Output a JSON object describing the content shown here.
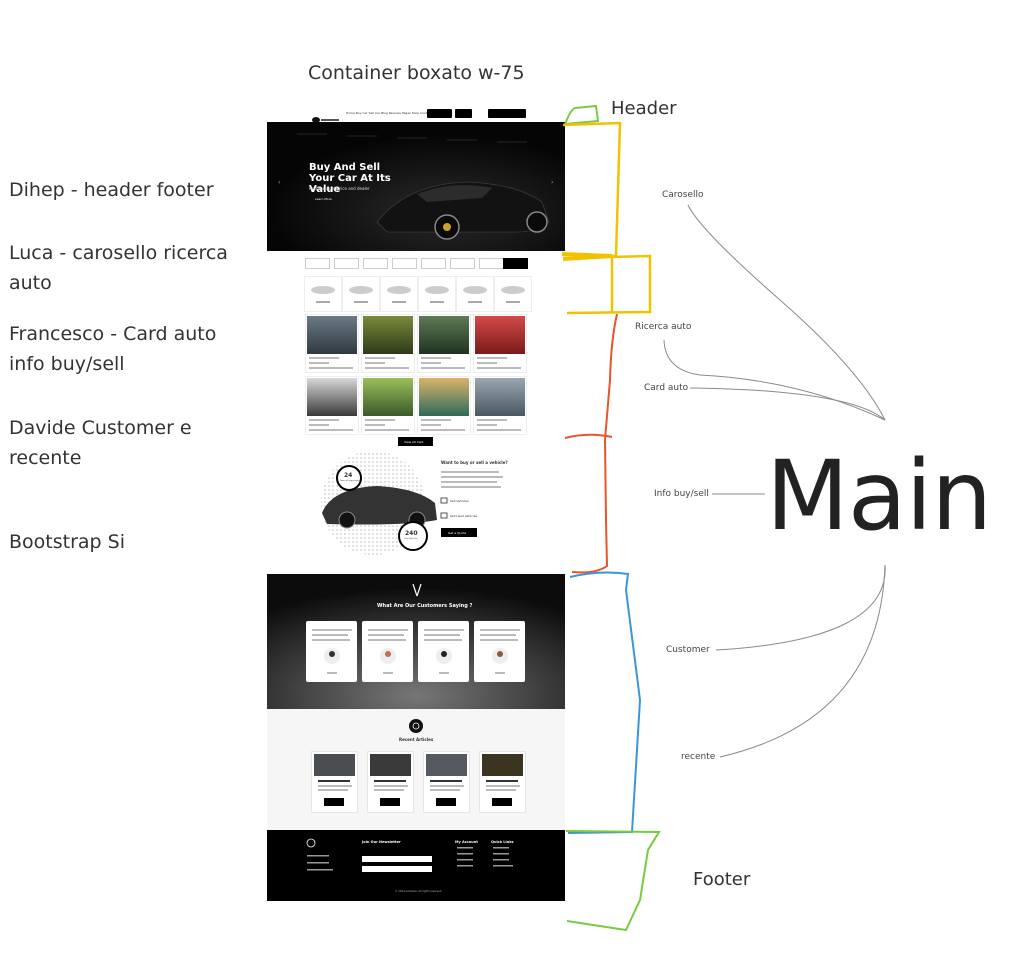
{
  "title": "Container boxato w-75",
  "assignments": [
    {
      "text": "Dihep - header footer"
    },
    {
      "text": "Luca - carosello ricerca auto"
    },
    {
      "text": "Francesco - Card auto info buy/sell"
    },
    {
      "text": "Davide Customer e recente"
    },
    {
      "text": "Bootstrap Si"
    }
  ],
  "section_labels": {
    "header": "Header",
    "footer": "Footer",
    "main": "Main"
  },
  "annotations": {
    "carosello": "Carosello",
    "ricerca_auto": "Ricerca auto",
    "card_auto": "Card auto",
    "info_buy_sell": "Info buy/sell",
    "customer": "Customer",
    "recente": "recente"
  },
  "mockup": {
    "hero_title": "Buy And Sell Your Car At Its Value",
    "hero_subtitle": "Find the right price and dealer",
    "hero_button": "Learn More",
    "nav_links": "Home  Buy Car  Sell Car  Blog  Reviews  Pages  Shop  Contact",
    "view_more": "View All Cars",
    "info_title": "Want to buy or sell a vehicle?",
    "stat_1": "24",
    "stat_1_label": "Years of Experience",
    "stat_2": "240",
    "stat_2_label": "Cars Sold Out",
    "info_new": "Sell Vehicles",
    "info_used": "Sell Used Vehicles",
    "info_button": "Get a Quote",
    "customers_title": "What Are Our Customers Saying ?",
    "recent_title": "Recent Articles",
    "newsletter_title": "Join Our Newsletter",
    "my_account": "My Account",
    "quick_links": "Quick Links",
    "copyright": "© 2024 Autowise. All rights reserved."
  },
  "colors": {
    "header_bracket": "#7ac943",
    "carosello_bracket": "#f2c200",
    "main_bracket": "#e8542c",
    "customer_bracket": "#3b95d9",
    "footer_bracket": "#7ac943"
  }
}
